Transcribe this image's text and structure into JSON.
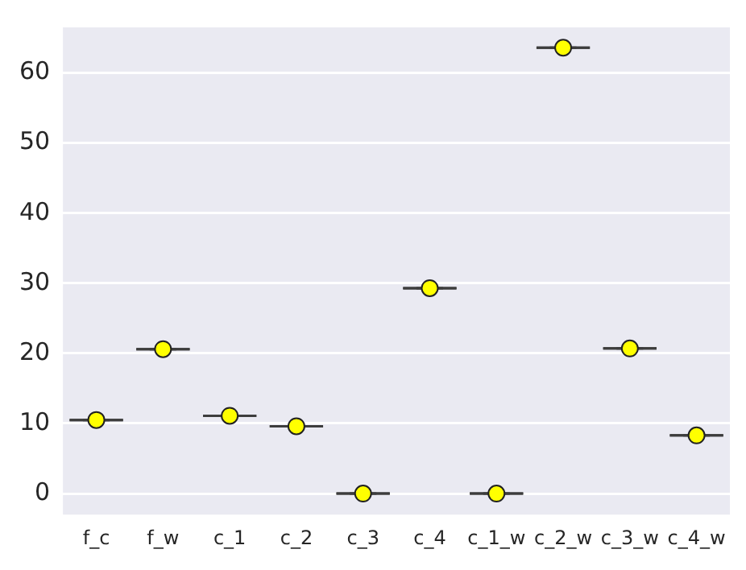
{
  "chart_data": {
    "type": "box",
    "categories": [
      "f_c",
      "f_w",
      "c_1",
      "c_2",
      "c_3",
      "c_4",
      "c_1_w",
      "c_2_w",
      "c_3_w",
      "c_4_w"
    ],
    "boxes": [
      {
        "low": 10.5,
        "q1": 10.5,
        "median": 10.5,
        "q3": 10.5,
        "high": 10.5,
        "mean": 10.5
      },
      {
        "low": 20.6,
        "q1": 20.6,
        "median": 20.6,
        "q3": 20.6,
        "high": 20.6,
        "mean": 20.6
      },
      {
        "low": 11.1,
        "q1": 11.1,
        "median": 11.1,
        "q3": 11.1,
        "high": 11.1,
        "mean": 11.1
      },
      {
        "low": 9.6,
        "q1": 9.6,
        "median": 9.6,
        "q3": 9.6,
        "high": 9.6,
        "mean": 9.6
      },
      {
        "low": 0,
        "q1": 0,
        "median": 0,
        "q3": 0,
        "high": 0,
        "mean": 0
      },
      {
        "low": 29.3,
        "q1": 29.3,
        "median": 29.3,
        "q3": 29.3,
        "high": 29.3,
        "mean": 29.3
      },
      {
        "low": 0,
        "q1": 0,
        "median": 0,
        "q3": 0,
        "high": 0,
        "mean": 0
      },
      {
        "low": 63.6,
        "q1": 63.6,
        "median": 63.6,
        "q3": 63.6,
        "high": 63.6,
        "mean": 63.6
      },
      {
        "low": 20.7,
        "q1": 20.7,
        "median": 20.7,
        "q3": 20.7,
        "high": 20.7,
        "mean": 20.7
      },
      {
        "low": 8.3,
        "q1": 8.3,
        "median": 8.3,
        "q3": 8.3,
        "high": 8.3,
        "mean": 8.3
      }
    ],
    "color": "#3d3d3d",
    "marker": "circle",
    "ylim": [
      -3,
      66.5
    ],
    "yticks": [
      0,
      10,
      20,
      30,
      40,
      50,
      60
    ],
    "grid": "y",
    "legend": false
  }
}
